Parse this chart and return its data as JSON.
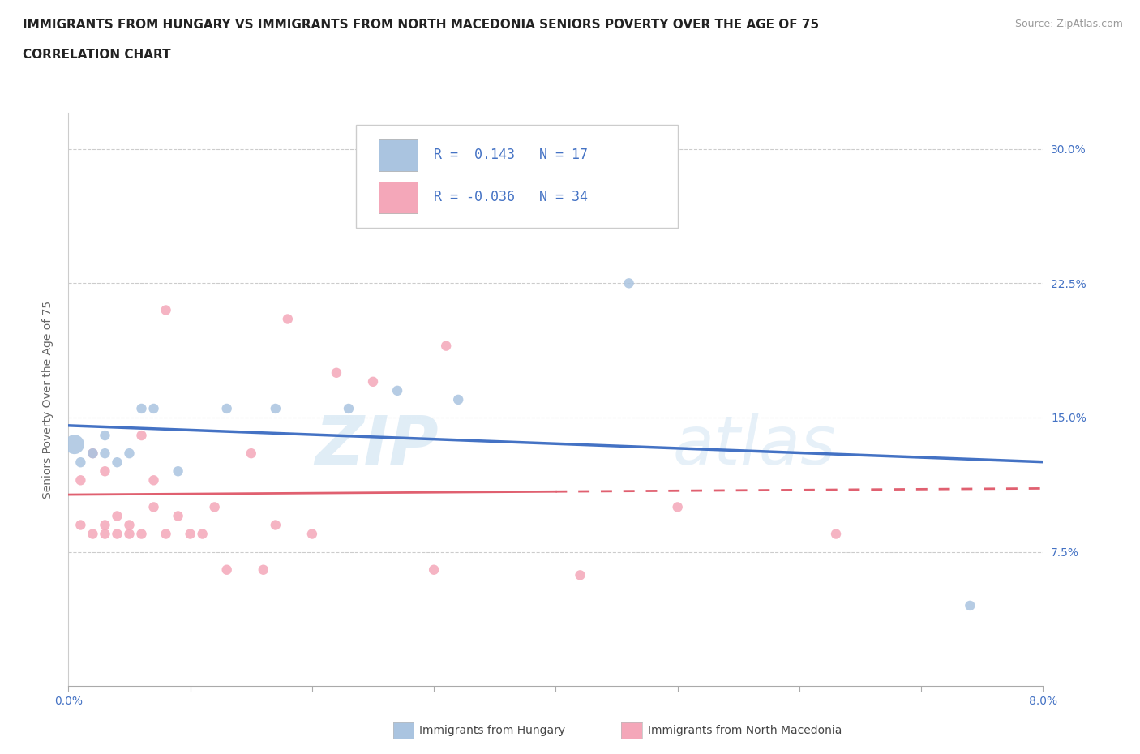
{
  "title_line1": "IMMIGRANTS FROM HUNGARY VS IMMIGRANTS FROM NORTH MACEDONIA SENIORS POVERTY OVER THE AGE OF 75",
  "title_line2": "CORRELATION CHART",
  "source": "Source: ZipAtlas.com",
  "ylabel": "Seniors Poverty Over the Age of 75",
  "xlim": [
    0.0,
    0.08
  ],
  "ylim": [
    0.0,
    0.32
  ],
  "xticks": [
    0.0,
    0.01,
    0.02,
    0.03,
    0.04,
    0.05,
    0.06,
    0.07,
    0.08
  ],
  "xticklabels": [
    "0.0%",
    "",
    "",
    "",
    "",
    "",
    "",
    "",
    "8.0%"
  ],
  "yticks": [
    0.075,
    0.15,
    0.225,
    0.3
  ],
  "yticklabels": [
    "7.5%",
    "15.0%",
    "22.5%",
    "30.0%"
  ],
  "watermark_left": "ZIP",
  "watermark_right": "atlas",
  "color_hungary": "#aac4e0",
  "color_macedonia": "#f4a7b9",
  "line_color_hungary": "#4472c4",
  "line_color_macedonia": "#e06070",
  "background_color": "#ffffff",
  "grid_color": "#cccccc",
  "hungary_x": [
    0.0005,
    0.001,
    0.002,
    0.003,
    0.003,
    0.004,
    0.005,
    0.006,
    0.007,
    0.009,
    0.013,
    0.017,
    0.023,
    0.027,
    0.032,
    0.046,
    0.074
  ],
  "hungary_y": [
    0.135,
    0.125,
    0.13,
    0.13,
    0.14,
    0.125,
    0.13,
    0.155,
    0.155,
    0.12,
    0.155,
    0.155,
    0.155,
    0.165,
    0.16,
    0.225,
    0.045
  ],
  "hungary_size": [
    300,
    80,
    80,
    80,
    80,
    80,
    80,
    80,
    80,
    80,
    80,
    80,
    80,
    80,
    80,
    80,
    80
  ],
  "macedonia_x": [
    0.001,
    0.001,
    0.002,
    0.002,
    0.003,
    0.003,
    0.003,
    0.004,
    0.004,
    0.005,
    0.005,
    0.006,
    0.006,
    0.007,
    0.007,
    0.008,
    0.008,
    0.009,
    0.01,
    0.011,
    0.012,
    0.013,
    0.015,
    0.016,
    0.017,
    0.018,
    0.02,
    0.022,
    0.025,
    0.03,
    0.031,
    0.042,
    0.05,
    0.063
  ],
  "macedonia_y": [
    0.09,
    0.115,
    0.085,
    0.13,
    0.085,
    0.09,
    0.12,
    0.085,
    0.095,
    0.085,
    0.09,
    0.085,
    0.14,
    0.115,
    0.1,
    0.085,
    0.21,
    0.095,
    0.085,
    0.085,
    0.1,
    0.065,
    0.13,
    0.065,
    0.09,
    0.205,
    0.085,
    0.175,
    0.17,
    0.065,
    0.19,
    0.062,
    0.1,
    0.085
  ],
  "macedonia_size": [
    80,
    80,
    80,
    80,
    80,
    80,
    80,
    80,
    80,
    80,
    80,
    80,
    80,
    80,
    80,
    80,
    80,
    80,
    80,
    80,
    80,
    80,
    80,
    80,
    80,
    80,
    80,
    80,
    80,
    80,
    80,
    80,
    80,
    80
  ],
  "title_fontsize": 11,
  "axis_label_fontsize": 10,
  "tick_fontsize": 10,
  "legend_fontsize": 12
}
